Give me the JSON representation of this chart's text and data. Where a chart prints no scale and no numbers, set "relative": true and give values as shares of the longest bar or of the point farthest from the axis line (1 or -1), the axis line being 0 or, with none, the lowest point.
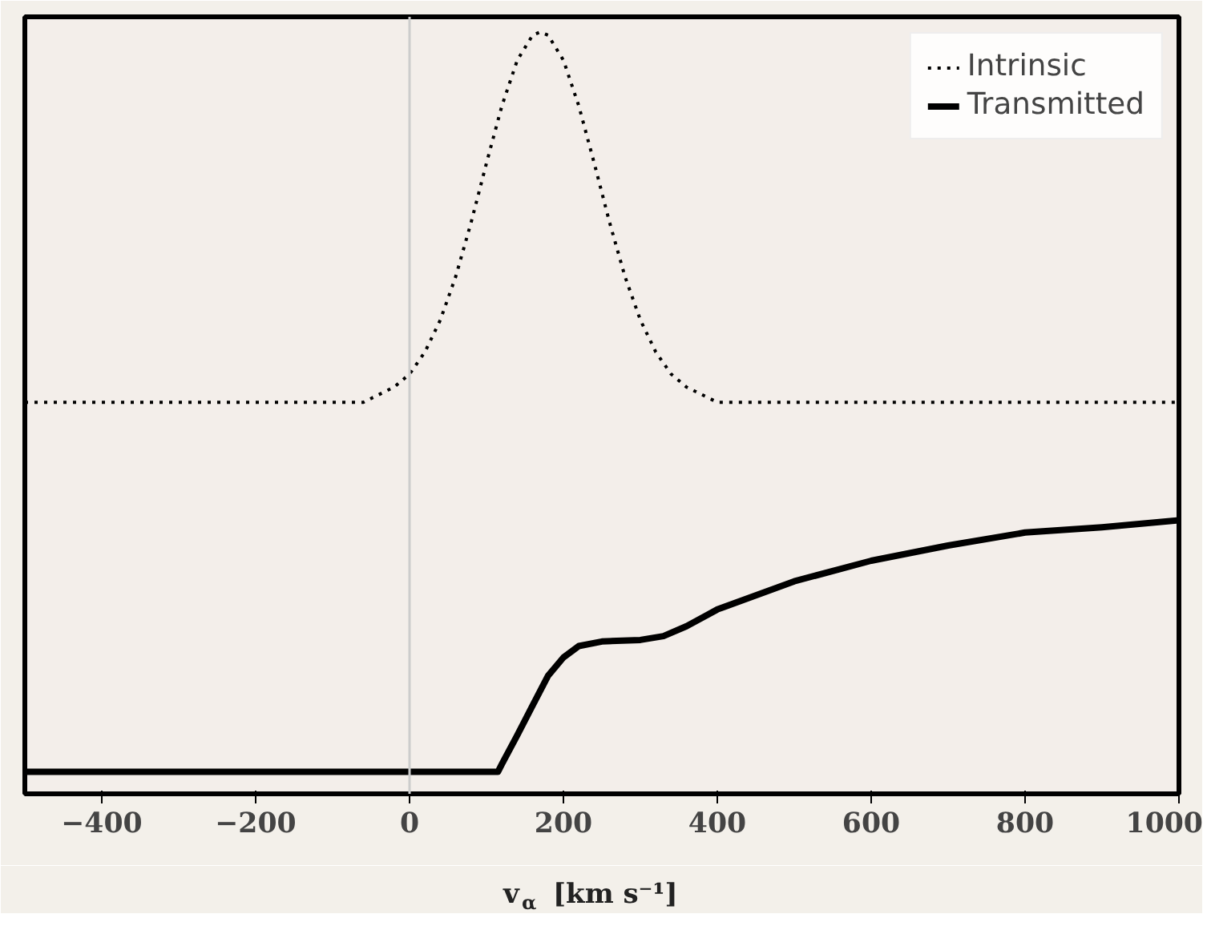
{
  "chart_data": {
    "type": "line",
    "relative": true,
    "xlabel": "v$_{α}$ [km s⁻¹]",
    "xlim": [
      -500,
      1000
    ],
    "xticks": [
      {
        "value": -400,
        "label": "−400"
      },
      {
        "value": -200,
        "label": "−200"
      },
      0,
      200,
      400,
      600,
      800,
      1000
    ],
    "tick_labels": "x",
    "grid": false,
    "legend": "top right",
    "ref_lines": [
      {
        "axis": "x",
        "value": 0,
        "color": "#cccccc"
      }
    ],
    "series": [
      {
        "name": "Intrinsic",
        "color": "#000000",
        "line_style": "dotted",
        "x": [
          -500,
          -100,
          -60,
          -40,
          -20,
          0,
          20,
          40,
          60,
          80,
          100,
          120,
          140,
          160,
          170,
          180,
          200,
          220,
          240,
          260,
          280,
          300,
          320,
          340,
          360,
          380,
          400,
          1000
        ],
        "values": [
          0.514,
          0.514,
          0.514,
          0.524,
          0.534,
          0.551,
          0.58,
          0.622,
          0.679,
          0.75,
          0.828,
          0.903,
          0.963,
          0.996,
          1.0,
          0.996,
          0.963,
          0.903,
          0.828,
          0.75,
          0.679,
          0.622,
          0.58,
          0.551,
          0.534,
          0.524,
          0.514,
          0.514
        ]
      },
      {
        "name": "Transmitted",
        "color": "#000000",
        "line_style": "solid",
        "x": [
          -500,
          115,
          120,
          140,
          160,
          180,
          200,
          220,
          250,
          300,
          330,
          360,
          400,
          500,
          600,
          700,
          800,
          900,
          1000
        ],
        "values": [
          0.029,
          0.029,
          0.039,
          0.077,
          0.116,
          0.155,
          0.179,
          0.194,
          0.2,
          0.202,
          0.207,
          0.22,
          0.242,
          0.279,
          0.306,
          0.326,
          0.343,
          0.35,
          0.359
        ]
      }
    ]
  }
}
